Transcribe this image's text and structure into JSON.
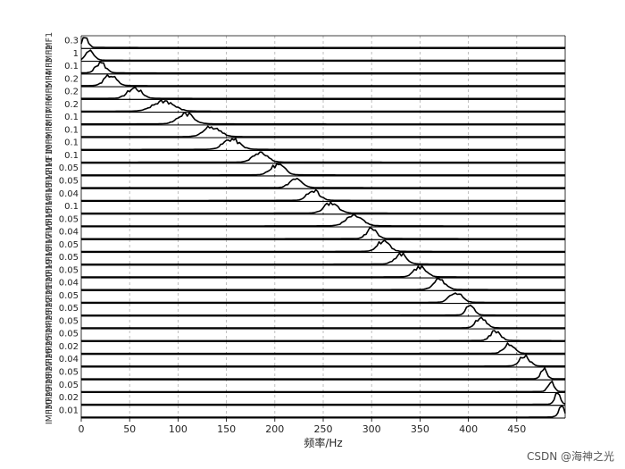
{
  "watermark": "CSDN @海神之光",
  "chart_data": {
    "type": "line",
    "xlabel": "频率/Hz",
    "xlim": [
      0,
      500
    ],
    "xticks": [
      0,
      50,
      100,
      150,
      200,
      250,
      300,
      350,
      400,
      450
    ],
    "ylabel_prefix": "IMF",
    "grid": true,
    "line_color": "#000000",
    "grid_color": "#b0b0b0",
    "panels": [
      {
        "label": "IMF1",
        "ymax_label": "0.3",
        "center": 4,
        "width": 3,
        "ymax": 0.3
      },
      {
        "label": "IMF2",
        "ymax_label": "1",
        "center": 9,
        "width": 4,
        "ymax": 1
      },
      {
        "label": "IMF3",
        "ymax_label": "0.1",
        "center": 20,
        "width": 5,
        "ymax": 0.1
      },
      {
        "label": "IMF4",
        "ymax_label": "0.2",
        "center": 30,
        "width": 6,
        "ymax": 0.2
      },
      {
        "label": "IMF5",
        "ymax_label": "0.2",
        "center": 55,
        "width": 7,
        "ymax": 0.2
      },
      {
        "label": "IMF6",
        "ymax_label": "0.2",
        "center": 85,
        "width": 10,
        "ymax": 0.2
      },
      {
        "label": "IMF7",
        "ymax_label": "0.1",
        "center": 108,
        "width": 8,
        "ymax": 0.1
      },
      {
        "label": "IMF8",
        "ymax_label": "0.1",
        "center": 135,
        "width": 8,
        "ymax": 0.1
      },
      {
        "label": "IMF9",
        "ymax_label": "0.1",
        "center": 155,
        "width": 8,
        "ymax": 0.1
      },
      {
        "label": "IMF10",
        "ymax_label": "0.1",
        "center": 185,
        "width": 7,
        "ymax": 0.1
      },
      {
        "label": "IMF11",
        "ymax_label": "0.05",
        "center": 203,
        "width": 7,
        "ymax": 0.05
      },
      {
        "label": "IMF12",
        "ymax_label": "0.05",
        "center": 222,
        "width": 6,
        "ymax": 0.05
      },
      {
        "label": "IMF13",
        "ymax_label": "0.04",
        "center": 240,
        "width": 6,
        "ymax": 0.04
      },
      {
        "label": "IMF14",
        "ymax_label": "0.1",
        "center": 258,
        "width": 7,
        "ymax": 0.1
      },
      {
        "label": "IMF15",
        "ymax_label": "0.05",
        "center": 282,
        "width": 8,
        "ymax": 0.05
      },
      {
        "label": "IMF16",
        "ymax_label": "0.04",
        "center": 300,
        "width": 5,
        "ymax": 0.04
      },
      {
        "label": "IMF17",
        "ymax_label": "0.05",
        "center": 312,
        "width": 6,
        "ymax": 0.05
      },
      {
        "label": "IMF18",
        "ymax_label": "0.05",
        "center": 330,
        "width": 6,
        "ymax": 0.05
      },
      {
        "label": "IMF19",
        "ymax_label": "0.05",
        "center": 350,
        "width": 6,
        "ymax": 0.05
      },
      {
        "label": "IMF20",
        "ymax_label": "0.04",
        "center": 370,
        "width": 6,
        "ymax": 0.04
      },
      {
        "label": "IMF21",
        "ymax_label": "0.05",
        "center": 387,
        "width": 6,
        "ymax": 0.05
      },
      {
        "label": "IMF22",
        "ymax_label": "0.05",
        "center": 402,
        "width": 4,
        "ymax": 0.05
      },
      {
        "label": "IMF23",
        "ymax_label": "0.05",
        "center": 413,
        "width": 5,
        "ymax": 0.05
      },
      {
        "label": "IMF24",
        "ymax_label": "0.05",
        "center": 428,
        "width": 5,
        "ymax": 0.05
      },
      {
        "label": "IMF25",
        "ymax_label": "0.02",
        "center": 442,
        "width": 5,
        "ymax": 0.02
      },
      {
        "label": "IMF26",
        "ymax_label": "0.04",
        "center": 458,
        "width": 5,
        "ymax": 0.04
      },
      {
        "label": "IMF27",
        "ymax_label": "0.05",
        "center": 478,
        "width": 3,
        "ymax": 0.05
      },
      {
        "label": "IMF28",
        "ymax_label": "0.05",
        "center": 485,
        "width": 3,
        "ymax": 0.05
      },
      {
        "label": "IMF29",
        "ymax_label": "0.02",
        "center": 492,
        "width": 3,
        "ymax": 0.02
      },
      {
        "label": "IMF30",
        "ymax_label": "0.01",
        "center": 496,
        "width": 3,
        "ymax": 0.01
      }
    ]
  }
}
